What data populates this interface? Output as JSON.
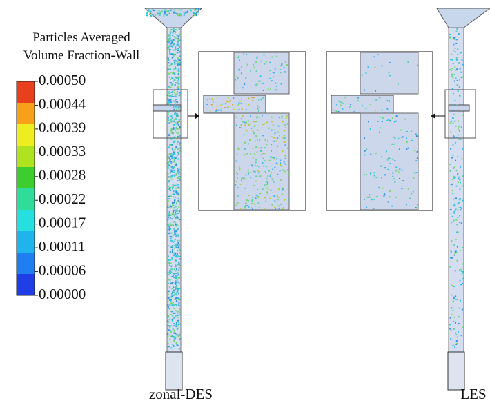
{
  "legend": {
    "title_lines": [
      "Particles Averaged",
      "Volume Fraction-Wall"
    ],
    "ticks": [
      "0.00050",
      "0.00044",
      "0.00039",
      "0.00033",
      "0.00028",
      "0.00022",
      "0.00017",
      "0.00011",
      "0.00006",
      "0.00000"
    ]
  },
  "panels": [
    {
      "label": "zonal-DES"
    },
    {
      "label": "LES"
    }
  ]
}
